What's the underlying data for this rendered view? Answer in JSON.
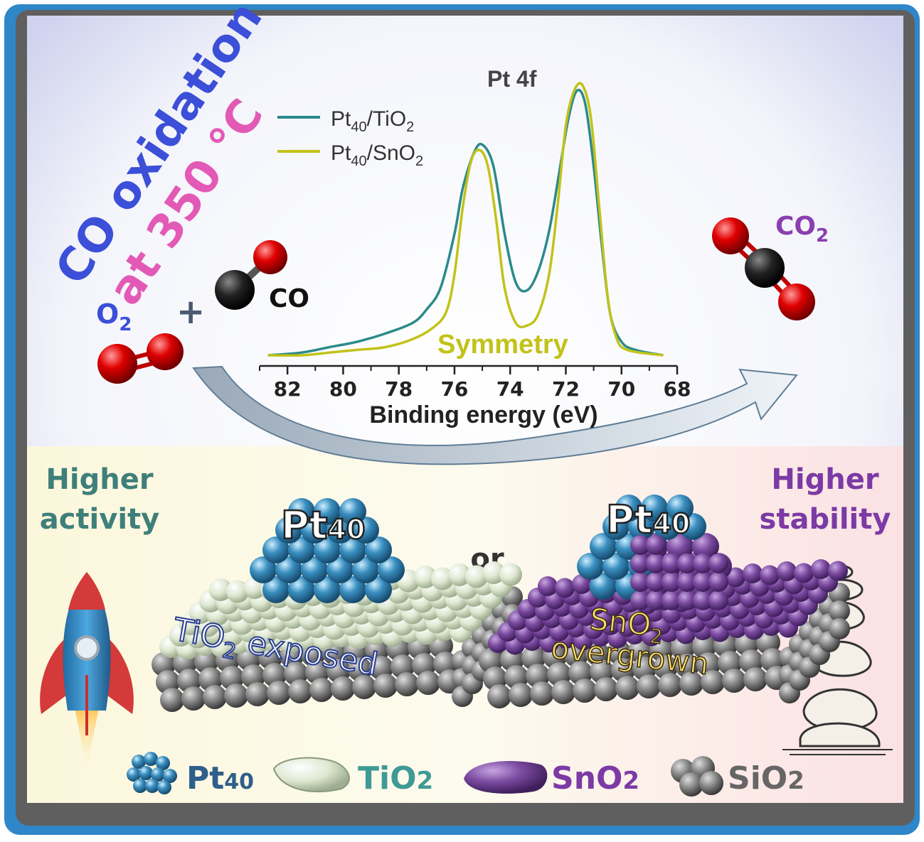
{
  "title": {
    "line1": "CO oxidation",
    "line2": "at 350 °C",
    "line1_color": "#3b4fd8",
    "line2_color": "#e25ab5"
  },
  "reaction": {
    "o2_label": "O",
    "o2_sub": "2",
    "plus": "+",
    "co_label": "CO",
    "co2_label": "CO",
    "co2_sub": "2",
    "o2_color": "#3b4fd8",
    "co2_color": "#8a3fb0"
  },
  "chart_data": {
    "type": "line",
    "title": "Pt 4f",
    "xlabel": "Binding energy (eV)",
    "ylabel": "",
    "xlim": [
      83,
      68
    ],
    "x_ticks": [
      82,
      80,
      78,
      76,
      74,
      72,
      70,
      68
    ],
    "annotation": "Symmetry",
    "legend_placement": "top-left",
    "series": [
      {
        "name": "Pt40/TiO2",
        "name_main": "Pt",
        "name_sub1": "40",
        "name_mid": "/TiO",
        "name_sub2": "2",
        "color": "#2b8a8a",
        "x": [
          82.7,
          81.5,
          80.5,
          79.5,
          78.5,
          77.5,
          77.0,
          76.5,
          76.0,
          75.7,
          75.3,
          75.0,
          74.6,
          74.2,
          73.8,
          73.4,
          73.0,
          72.6,
          72.2,
          71.9,
          71.6,
          71.3,
          71.0,
          70.7,
          70.4,
          70.0,
          69.5,
          68.5
        ],
        "y": [
          0.0,
          0.01,
          0.03,
          0.05,
          0.08,
          0.12,
          0.17,
          0.25,
          0.45,
          0.62,
          0.75,
          0.78,
          0.7,
          0.45,
          0.27,
          0.24,
          0.31,
          0.46,
          0.7,
          0.88,
          0.98,
          0.93,
          0.7,
          0.4,
          0.15,
          0.05,
          0.02,
          0.0
        ]
      },
      {
        "name": "Pt40/SnO2",
        "name_main": "Pt",
        "name_sub1": "40",
        "name_mid": "/SnO",
        "name_sub2": "2",
        "color": "#c2c21a",
        "x": [
          82.7,
          81.5,
          80.5,
          79.5,
          78.5,
          77.5,
          76.8,
          76.3,
          76.0,
          75.7,
          75.4,
          75.1,
          74.8,
          74.5,
          74.2,
          73.8,
          73.4,
          73.0,
          72.6,
          72.3,
          72.0,
          71.7,
          71.4,
          71.1,
          70.8,
          70.5,
          70.2,
          69.8,
          68.5
        ],
        "y": [
          0.0,
          0.0,
          0.01,
          0.02,
          0.03,
          0.06,
          0.1,
          0.16,
          0.3,
          0.55,
          0.72,
          0.76,
          0.7,
          0.5,
          0.25,
          0.12,
          0.11,
          0.15,
          0.3,
          0.55,
          0.85,
          0.98,
          1.0,
          0.88,
          0.55,
          0.22,
          0.07,
          0.02,
          0.0
        ]
      }
    ]
  },
  "bottom": {
    "left_heading_1": "Higher",
    "left_heading_2": "activity",
    "left_color": "#3f7f7a",
    "right_heading_1": "Higher",
    "right_heading_2": "stability",
    "right_color": "#7b3aa5",
    "or_label": "or",
    "pt_cluster_label_main": "Pt",
    "pt_cluster_label_sub": "40",
    "left_caption_1": "TiO",
    "left_caption_sub": "2",
    "left_caption_2": " exposed",
    "right_caption_1": "SnO",
    "right_caption_sub": "2",
    "right_caption_2": "overgrown"
  },
  "legend_bottom": {
    "pt_main": "Pt",
    "pt_sub": "40",
    "tio2_main": "TiO",
    "tio2_sub": "2",
    "sno2_main": "SnO",
    "sno2_sub": "2",
    "sio2_main": "SiO",
    "sio2_sub": "2",
    "pt_color": "#2f5f8a",
    "tio2_color": "#3f9a95",
    "sno2_color": "#7b3aa5",
    "sio2_color": "#666666"
  },
  "colors": {
    "frame_blue": "#2f86c8",
    "pt_sphere": "#3a8fc0",
    "tio2": "#dfe8d2",
    "sno2": "#7b4aa0",
    "sio2": "#8a8a8a",
    "oxygen": "#e00000",
    "carbon": "#222222"
  }
}
